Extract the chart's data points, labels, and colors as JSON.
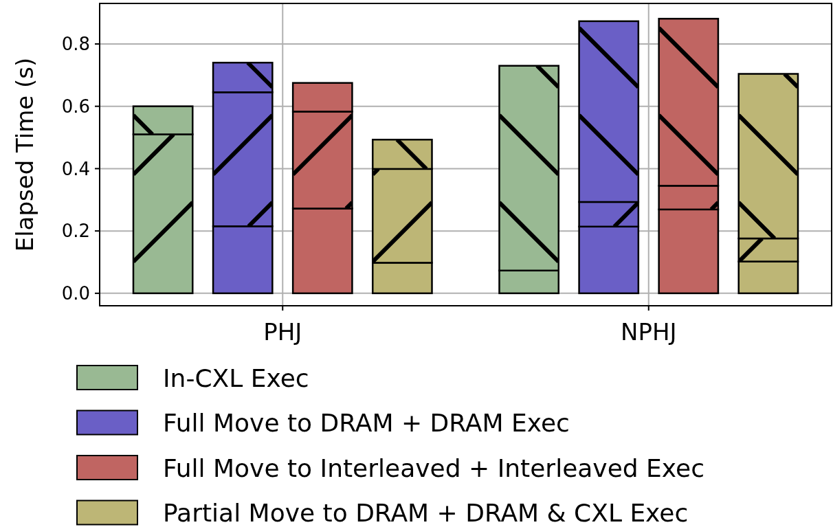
{
  "chart_data": {
    "type": "bar",
    "ylabel": "Elapsed Time (s)",
    "categories": [
      "PHJ",
      "NPHJ"
    ],
    "series": [
      {
        "name": "In-CXL Exec",
        "color": "#99b993",
        "values": [
          0.51,
          0.073
        ],
        "base": [
          0,
          0
        ]
      },
      {
        "color": "#99b993",
        "values": [
          0.09,
          0.657
        ],
        "base": [
          0.51,
          0.073
        ]
      },
      {
        "name": "Full Move to DRAM + DRAM Exec",
        "color": "#6a5fc6",
        "values": [
          0.215,
          0.214
        ],
        "base": [
          0,
          0
        ]
      },
      {
        "color": "#6a5fc6",
        "values": [
          0.43,
          0.079
        ],
        "base": [
          0.215,
          0.214
        ]
      },
      {
        "color": "#6a5fc6",
        "values": [
          0.095,
          0.58
        ],
        "base": [
          0.645,
          0.293
        ]
      },
      {
        "name": "Full Move to Interleaved + Interleaved Exec",
        "color": "#c06562",
        "values": [
          0.272,
          0.269
        ],
        "base": [
          0,
          0
        ]
      },
      {
        "color": "#c06562",
        "values": [
          0.311,
          0.076
        ],
        "base": [
          0.272,
          0.269
        ]
      },
      {
        "color": "#c06562",
        "values": [
          0.092,
          0.536
        ],
        "base": [
          0.583,
          0.345
        ]
      },
      {
        "name": "Partial Move to DRAM + DRAM & CXL Exec",
        "color": "#bdb676",
        "values": [
          0.098,
          0.102
        ],
        "base": [
          0,
          0
        ]
      },
      {
        "color": "#bdb676",
        "values": [
          0.301,
          0.074
        ],
        "base": [
          0.098,
          0.102
        ]
      },
      {
        "color": "#bdb676",
        "values": [
          0.094,
          0.528
        ],
        "base": [
          0.399,
          0.176
        ]
      }
    ],
    "ylim": [
      -0.04,
      0.93
    ],
    "yticks": [
      {
        "value": 0,
        "label": "0.0"
      },
      {
        "value": 0.2,
        "label": "0.2"
      },
      {
        "value": 0.4,
        "label": "0.4"
      },
      {
        "value": 0.6,
        "label": "0.6"
      },
      {
        "value": 0.8,
        "label": "0.8"
      }
    ],
    "grid": true,
    "legend": "bottom"
  }
}
